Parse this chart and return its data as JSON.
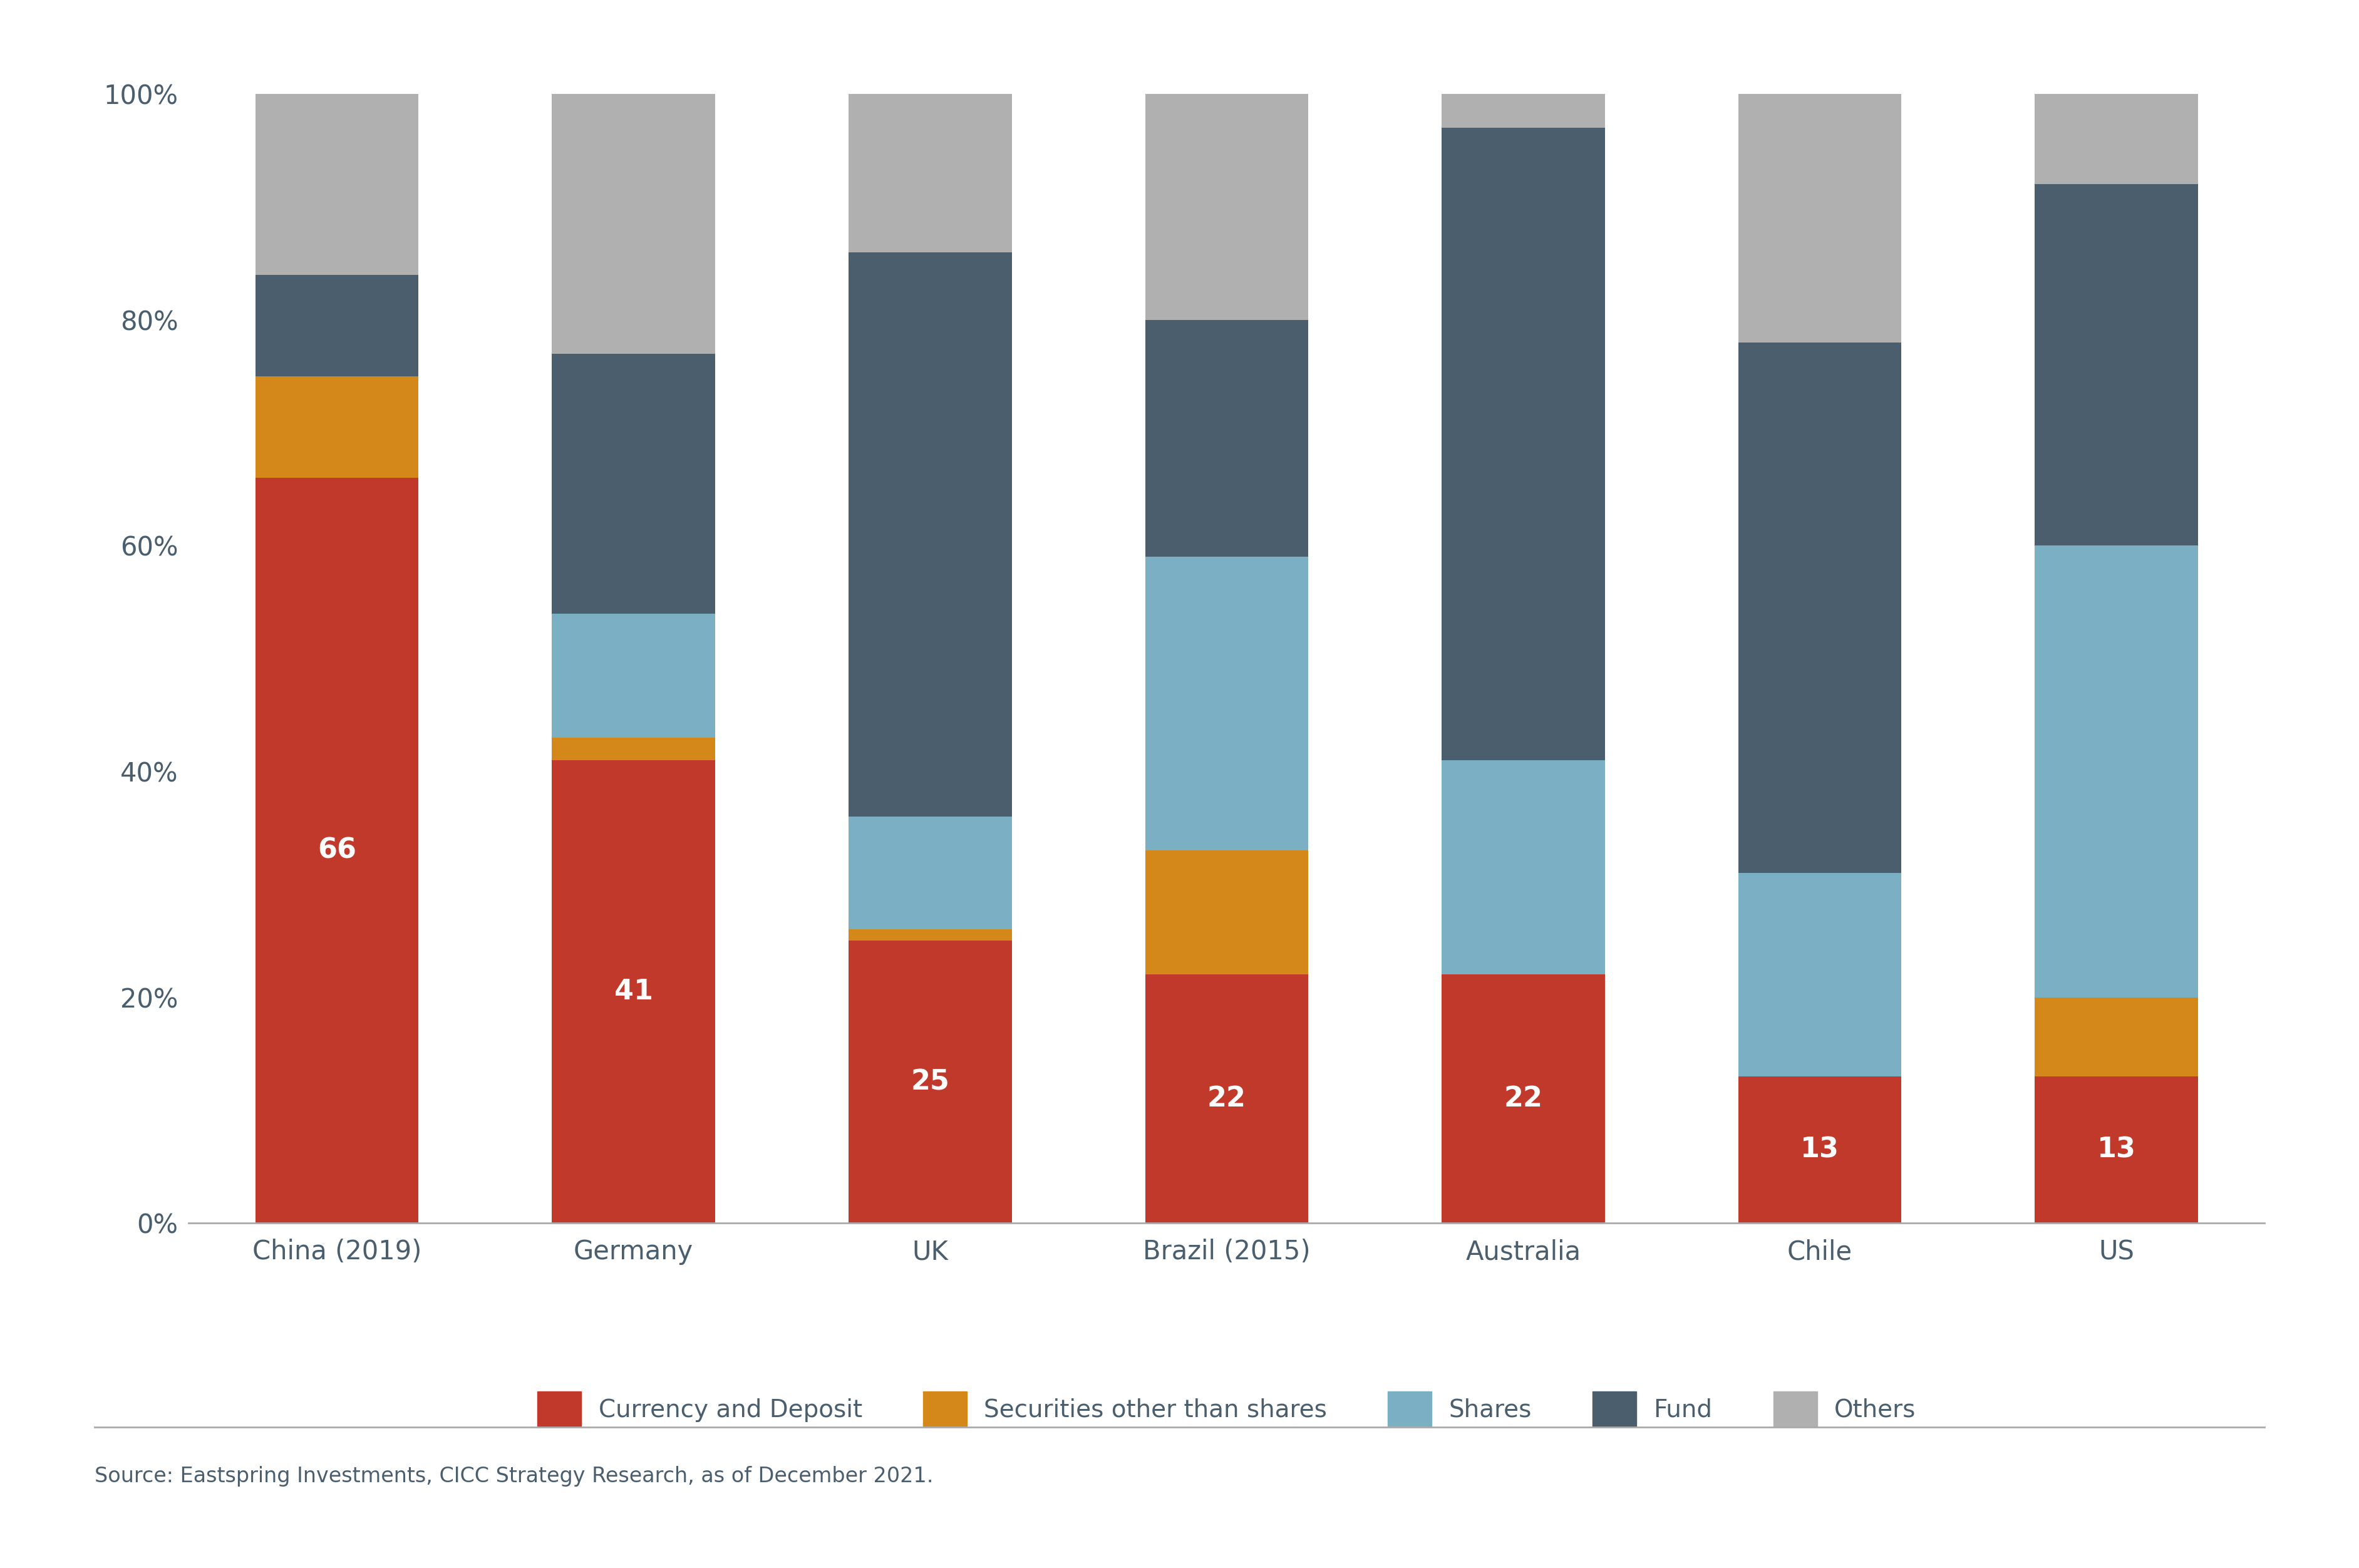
{
  "categories": [
    "China (2019)",
    "Germany",
    "UK",
    "Brazil (2015)",
    "Australia",
    "Chile",
    "US"
  ],
  "series": {
    "Currency and Deposit": [
      66,
      41,
      25,
      22,
      22,
      13,
      13
    ],
    "Securities other than shares": [
      9,
      2,
      1,
      11,
      0,
      0,
      7
    ],
    "Shares": [
      0,
      11,
      10,
      26,
      19,
      18,
      40
    ],
    "Fund": [
      9,
      23,
      50,
      21,
      56,
      47,
      32
    ],
    "Others": [
      16,
      23,
      14,
      20,
      3,
      22,
      8
    ]
  },
  "colors": {
    "Currency and Deposit": "#C0392B",
    "Securities other than shares": "#D4881A",
    "Shares": "#7BAFC4",
    "Fund": "#4A5E6E",
    "Others": "#B0B0B0"
  },
  "bar_labels": [
    66,
    41,
    25,
    22,
    22,
    13,
    13
  ],
  "yticks": [
    0,
    20,
    40,
    60,
    80,
    100
  ],
  "ytick_labels": [
    "0%",
    "20%",
    "40%",
    "60%",
    "80%",
    "100%"
  ],
  "source_text": "Source: Eastspring Investments, CICC Strategy Research, as of December 2021.",
  "background_color": "#FFFFFF",
  "text_color": "#4A5E6E",
  "label_fontsize": 32,
  "tick_fontsize": 30,
  "title_fontsize": 0,
  "legend_fontsize": 28,
  "source_fontsize": 24
}
